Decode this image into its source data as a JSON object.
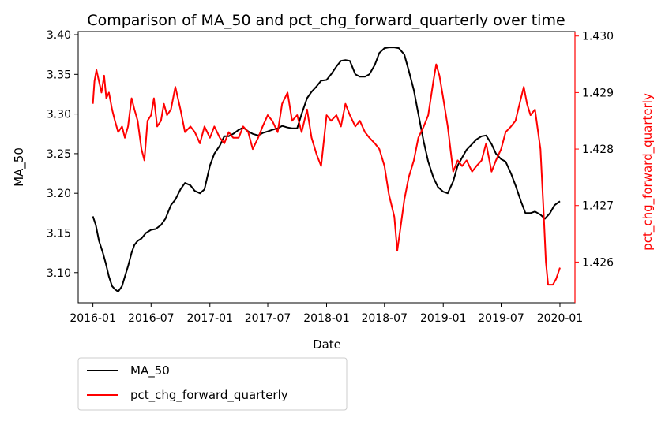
{
  "chart_data": {
    "type": "line",
    "title": "Comparison of MA_50 and pct_chg_forward_quarterly over time",
    "xlabel": "Date",
    "ylabel_left": "MA_50",
    "ylabel_right": "pct_chg_forward_quarterly",
    "x_ticks": [
      "2016-01",
      "2016-07",
      "2017-01",
      "2017-07",
      "2018-01",
      "2018-07",
      "2019-01",
      "2019-07",
      "2020-01"
    ],
    "y_left_ticks": [
      "3.10",
      "3.15",
      "3.20",
      "3.25",
      "3.30",
      "3.35",
      "3.40"
    ],
    "y_right_ticks": [
      "1.426",
      "1.427",
      "1.428",
      "1.429",
      "1.430"
    ],
    "x_range": [
      "2015-11-16",
      "2020-02-17"
    ],
    "y_left_range": [
      3.062,
      3.404
    ],
    "y_right_range": [
      1.42528,
      1.43008
    ],
    "grid": false,
    "legend_position": "bottom-left-outside",
    "series": [
      {
        "name": "MA_50",
        "axis": "left",
        "color": "#000000",
        "points": [
          [
            "2016-01-01",
            3.171
          ],
          [
            "2016-01-10",
            3.16
          ],
          [
            "2016-01-20",
            3.14
          ],
          [
            "2016-02-01",
            3.125
          ],
          [
            "2016-02-10",
            3.112
          ],
          [
            "2016-02-20",
            3.095
          ],
          [
            "2016-03-01",
            3.083
          ],
          [
            "2016-03-10",
            3.079
          ],
          [
            "2016-03-20",
            3.076
          ],
          [
            "2016-04-01",
            3.083
          ],
          [
            "2016-04-10",
            3.095
          ],
          [
            "2016-04-20",
            3.108
          ],
          [
            "2016-05-01",
            3.125
          ],
          [
            "2016-05-10",
            3.135
          ],
          [
            "2016-05-20",
            3.14
          ],
          [
            "2016-06-01",
            3.143
          ],
          [
            "2016-06-15",
            3.15
          ],
          [
            "2016-07-01",
            3.154
          ],
          [
            "2016-07-15",
            3.155
          ],
          [
            "2016-08-01",
            3.16
          ],
          [
            "2016-08-15",
            3.168
          ],
          [
            "2016-09-01",
            3.185
          ],
          [
            "2016-09-15",
            3.192
          ],
          [
            "2016-10-01",
            3.205
          ],
          [
            "2016-10-15",
            3.213
          ],
          [
            "2016-11-01",
            3.21
          ],
          [
            "2016-11-15",
            3.203
          ],
          [
            "2016-12-01",
            3.2
          ],
          [
            "2016-12-15",
            3.205
          ],
          [
            "2017-01-01",
            3.235
          ],
          [
            "2017-01-15",
            3.25
          ],
          [
            "2017-02-01",
            3.26
          ],
          [
            "2017-02-15",
            3.272
          ],
          [
            "2017-03-01",
            3.272
          ],
          [
            "2017-03-15",
            3.275
          ],
          [
            "2017-04-01",
            3.28
          ],
          [
            "2017-04-15",
            3.283
          ],
          [
            "2017-05-01",
            3.278
          ],
          [
            "2017-05-15",
            3.275
          ],
          [
            "2017-06-01",
            3.273
          ],
          [
            "2017-06-15",
            3.276
          ],
          [
            "2017-07-01",
            3.278
          ],
          [
            "2017-07-15",
            3.28
          ],
          [
            "2017-08-01",
            3.282
          ],
          [
            "2017-08-15",
            3.285
          ],
          [
            "2017-09-01",
            3.283
          ],
          [
            "2017-09-15",
            3.282
          ],
          [
            "2017-10-01",
            3.282
          ],
          [
            "2017-10-15",
            3.3
          ],
          [
            "2017-11-01",
            3.32
          ],
          [
            "2017-11-15",
            3.328
          ],
          [
            "2017-12-01",
            3.335
          ],
          [
            "2017-12-15",
            3.342
          ],
          [
            "2018-01-01",
            3.343
          ],
          [
            "2018-01-15",
            3.35
          ],
          [
            "2018-02-01",
            3.36
          ],
          [
            "2018-02-15",
            3.367
          ],
          [
            "2018-03-01",
            3.368
          ],
          [
            "2018-03-15",
            3.367
          ],
          [
            "2018-04-01",
            3.35
          ],
          [
            "2018-04-15",
            3.347
          ],
          [
            "2018-05-01",
            3.347
          ],
          [
            "2018-05-15",
            3.35
          ],
          [
            "2018-06-01",
            3.362
          ],
          [
            "2018-06-15",
            3.377
          ],
          [
            "2018-07-01",
            3.383
          ],
          [
            "2018-07-15",
            3.384
          ],
          [
            "2018-08-01",
            3.384
          ],
          [
            "2018-08-15",
            3.383
          ],
          [
            "2018-09-01",
            3.375
          ],
          [
            "2018-09-15",
            3.355
          ],
          [
            "2018-10-01",
            3.33
          ],
          [
            "2018-10-15",
            3.3
          ],
          [
            "2018-11-01",
            3.265
          ],
          [
            "2018-11-15",
            3.24
          ],
          [
            "2018-12-01",
            3.22
          ],
          [
            "2018-12-15",
            3.208
          ],
          [
            "2019-01-01",
            3.202
          ],
          [
            "2019-01-15",
            3.2
          ],
          [
            "2019-02-01",
            3.215
          ],
          [
            "2019-02-15",
            3.235
          ],
          [
            "2019-03-01",
            3.245
          ],
          [
            "2019-03-15",
            3.255
          ],
          [
            "2019-04-01",
            3.262
          ],
          [
            "2019-04-15",
            3.268
          ],
          [
            "2019-05-01",
            3.272
          ],
          [
            "2019-05-15",
            3.273
          ],
          [
            "2019-06-01",
            3.262
          ],
          [
            "2019-06-15",
            3.25
          ],
          [
            "2019-07-01",
            3.243
          ],
          [
            "2019-07-15",
            3.24
          ],
          [
            "2019-08-01",
            3.225
          ],
          [
            "2019-08-15",
            3.21
          ],
          [
            "2019-09-01",
            3.19
          ],
          [
            "2019-09-15",
            3.175
          ],
          [
            "2019-10-01",
            3.175
          ],
          [
            "2019-10-15",
            3.177
          ],
          [
            "2019-11-01",
            3.173
          ],
          [
            "2019-11-15",
            3.168
          ],
          [
            "2019-12-01",
            3.175
          ],
          [
            "2019-12-15",
            3.185
          ],
          [
            "2020-01-01",
            3.19
          ]
        ]
      },
      {
        "name": "pct_chg_forward_quarterly",
        "axis": "right",
        "color": "#ff0000",
        "points": [
          [
            "2016-01-01",
            1.4288
          ],
          [
            "2016-01-06",
            1.4292
          ],
          [
            "2016-01-12",
            1.4294
          ],
          [
            "2016-01-20",
            1.4292
          ],
          [
            "2016-01-28",
            1.429
          ],
          [
            "2016-02-05",
            1.4293
          ],
          [
            "2016-02-12",
            1.4289
          ],
          [
            "2016-02-20",
            1.429
          ],
          [
            "2016-03-01",
            1.4287
          ],
          [
            "2016-03-10",
            1.4285
          ],
          [
            "2016-03-20",
            1.4283
          ],
          [
            "2016-04-01",
            1.4284
          ],
          [
            "2016-04-10",
            1.4282
          ],
          [
            "2016-04-20",
            1.4284
          ],
          [
            "2016-05-01",
            1.4289
          ],
          [
            "2016-05-10",
            1.4287
          ],
          [
            "2016-05-20",
            1.4285
          ],
          [
            "2016-06-01",
            1.428
          ],
          [
            "2016-06-10",
            1.4278
          ],
          [
            "2016-06-20",
            1.4285
          ],
          [
            "2016-07-01",
            1.4286
          ],
          [
            "2016-07-10",
            1.4289
          ],
          [
            "2016-07-20",
            1.4284
          ],
          [
            "2016-08-01",
            1.4285
          ],
          [
            "2016-08-10",
            1.4288
          ],
          [
            "2016-08-20",
            1.4286
          ],
          [
            "2016-09-01",
            1.4287
          ],
          [
            "2016-09-15",
            1.4291
          ],
          [
            "2016-10-01",
            1.4287
          ],
          [
            "2016-10-15",
            1.4283
          ],
          [
            "2016-11-01",
            1.4284
          ],
          [
            "2016-11-15",
            1.4283
          ],
          [
            "2016-12-01",
            1.4281
          ],
          [
            "2016-12-15",
            1.4284
          ],
          [
            "2017-01-01",
            1.4282
          ],
          [
            "2017-01-15",
            1.4284
          ],
          [
            "2017-02-01",
            1.4282
          ],
          [
            "2017-02-15",
            1.4281
          ],
          [
            "2017-03-01",
            1.4283
          ],
          [
            "2017-03-15",
            1.4282
          ],
          [
            "2017-04-01",
            1.4282
          ],
          [
            "2017-04-15",
            1.4284
          ],
          [
            "2017-05-01",
            1.4283
          ],
          [
            "2017-05-15",
            1.428
          ],
          [
            "2017-06-01",
            1.4282
          ],
          [
            "2017-06-15",
            1.4284
          ],
          [
            "2017-07-01",
            1.4286
          ],
          [
            "2017-07-15",
            1.4285
          ],
          [
            "2017-08-01",
            1.4283
          ],
          [
            "2017-08-15",
            1.4288
          ],
          [
            "2017-09-01",
            1.429
          ],
          [
            "2017-09-15",
            1.4285
          ],
          [
            "2017-10-01",
            1.4286
          ],
          [
            "2017-10-15",
            1.4283
          ],
          [
            "2017-11-01",
            1.4287
          ],
          [
            "2017-11-15",
            1.4282
          ],
          [
            "2017-12-01",
            1.4279
          ],
          [
            "2017-12-15",
            1.4277
          ],
          [
            "2018-01-01",
            1.4286
          ],
          [
            "2018-01-15",
            1.4285
          ],
          [
            "2018-02-01",
            1.4286
          ],
          [
            "2018-02-15",
            1.4284
          ],
          [
            "2018-03-01",
            1.4288
          ],
          [
            "2018-03-15",
            1.4286
          ],
          [
            "2018-04-01",
            1.4284
          ],
          [
            "2018-04-15",
            1.4285
          ],
          [
            "2018-05-01",
            1.4283
          ],
          [
            "2018-05-15",
            1.4282
          ],
          [
            "2018-06-01",
            1.4281
          ],
          [
            "2018-06-15",
            1.428
          ],
          [
            "2018-07-01",
            1.4277
          ],
          [
            "2018-07-15",
            1.4272
          ],
          [
            "2018-08-01",
            1.4268
          ],
          [
            "2018-08-10",
            1.4262
          ],
          [
            "2018-08-20",
            1.4266
          ],
          [
            "2018-09-01",
            1.4271
          ],
          [
            "2018-09-15",
            1.4275
          ],
          [
            "2018-10-01",
            1.4278
          ],
          [
            "2018-10-15",
            1.4282
          ],
          [
            "2018-11-01",
            1.4284
          ],
          [
            "2018-11-15",
            1.4286
          ],
          [
            "2018-12-01",
            1.4292
          ],
          [
            "2018-12-10",
            1.4295
          ],
          [
            "2018-12-20",
            1.4293
          ],
          [
            "2019-01-01",
            1.4289
          ],
          [
            "2019-01-15",
            1.4284
          ],
          [
            "2019-02-01",
            1.4276
          ],
          [
            "2019-02-15",
            1.4278
          ],
          [
            "2019-03-01",
            1.4277
          ],
          [
            "2019-03-15",
            1.4278
          ],
          [
            "2019-04-01",
            1.4276
          ],
          [
            "2019-04-15",
            1.4277
          ],
          [
            "2019-05-01",
            1.4278
          ],
          [
            "2019-05-15",
            1.4281
          ],
          [
            "2019-06-01",
            1.4276
          ],
          [
            "2019-06-15",
            1.4278
          ],
          [
            "2019-07-01",
            1.428
          ],
          [
            "2019-07-15",
            1.4283
          ],
          [
            "2019-08-01",
            1.4284
          ],
          [
            "2019-08-15",
            1.4285
          ],
          [
            "2019-09-01",
            1.4289
          ],
          [
            "2019-09-10",
            1.4291
          ],
          [
            "2019-09-20",
            1.4288
          ],
          [
            "2019-10-01",
            1.4286
          ],
          [
            "2019-10-15",
            1.4287
          ],
          [
            "2019-11-01",
            1.428
          ],
          [
            "2019-11-10",
            1.427
          ],
          [
            "2019-11-18",
            1.426
          ],
          [
            "2019-11-25",
            1.4256
          ],
          [
            "2019-12-01",
            1.4256
          ],
          [
            "2019-12-10",
            1.4256
          ],
          [
            "2019-12-20",
            1.4257
          ],
          [
            "2020-01-01",
            1.4259
          ]
        ]
      }
    ]
  }
}
